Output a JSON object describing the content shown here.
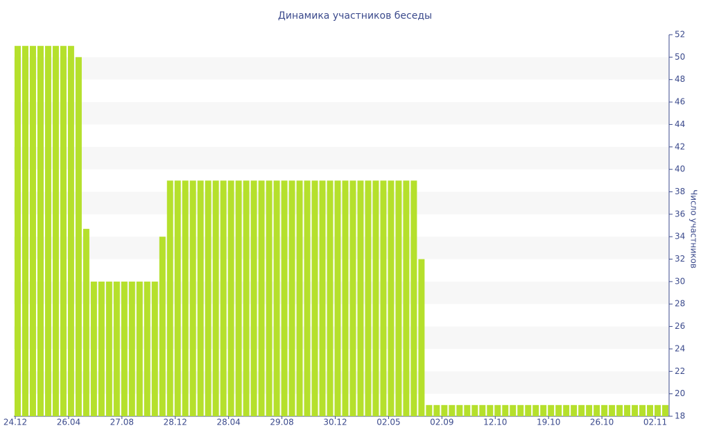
{
  "chart_data": {
    "type": "bar",
    "title": "Динамика участников беседы",
    "y_label": "Число участников",
    "categories": [
      "24.12",
      null,
      null,
      null,
      null,
      null,
      null,
      "26.04",
      null,
      null,
      null,
      null,
      null,
      null,
      "27.08",
      null,
      null,
      null,
      null,
      null,
      null,
      "28.12",
      null,
      null,
      null,
      null,
      null,
      null,
      "28.04",
      null,
      null,
      null,
      null,
      null,
      null,
      "29.08",
      null,
      null,
      null,
      null,
      null,
      null,
      "30.12",
      null,
      null,
      null,
      null,
      null,
      null,
      "02.05",
      null,
      null,
      null,
      null,
      null,
      null,
      "02.09",
      null,
      null,
      null,
      null,
      null,
      null,
      "12.10",
      null,
      null,
      null,
      null,
      null,
      null,
      "19.10",
      null,
      null,
      null,
      null,
      null,
      null,
      "26.10",
      null,
      null,
      null,
      null,
      null,
      null,
      "02.11",
      null
    ],
    "values": [
      51,
      51,
      51,
      51,
      51,
      51,
      51,
      51,
      50,
      34.7,
      30,
      30,
      30,
      30,
      30,
      30,
      30,
      30,
      30,
      34,
      39,
      39,
      39,
      39,
      39,
      39,
      39,
      39,
      39,
      39,
      39,
      39,
      39,
      39,
      39,
      39,
      39,
      39,
      39,
      39,
      39,
      39,
      39,
      39,
      39,
      39,
      39,
      39,
      39,
      39,
      39,
      39,
      39,
      32,
      19,
      19,
      19,
      19,
      19,
      19,
      19,
      19,
      19,
      19,
      19,
      19,
      19,
      19,
      19,
      19,
      19,
      19,
      19,
      19,
      19,
      19,
      19,
      19,
      19,
      19,
      19,
      19,
      19,
      19,
      19,
      19
    ],
    "color": "#b5e02c",
    "ylim": [
      18,
      52
    ],
    "yticks": [
      18,
      20,
      22,
      24,
      26,
      28,
      30,
      32,
      34,
      36,
      38,
      40,
      42,
      44,
      46,
      48,
      50,
      52
    ],
    "grid": true,
    "y_axis_side": "right"
  }
}
